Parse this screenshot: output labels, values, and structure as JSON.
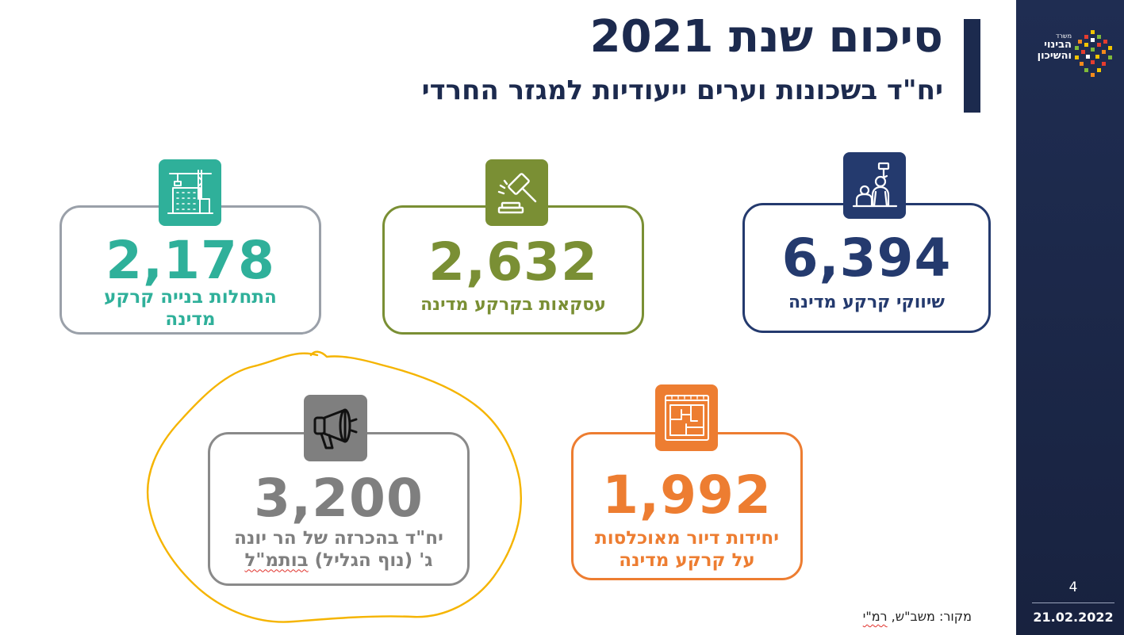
{
  "header": {
    "title": "סיכום שנת 2021",
    "subtitle": "יח\"ד בשכונות וערים ייעודיות למגזר החרדי"
  },
  "sidebar": {
    "logo_line_small": "משרד",
    "logo_line_1": "הבינוי",
    "logo_line_2": "והשיכון",
    "page_number": "4",
    "date": "21.02.2022"
  },
  "cards": {
    "marketing": {
      "value": "6,394",
      "label": "שיווקי קרקע מדינה",
      "icon": "worker-icon",
      "color": "#243a6e"
    },
    "deals": {
      "value": "2,632",
      "label": "עסקאות בקרקע מדינה",
      "icon": "gavel-icon",
      "color": "#7a8f34"
    },
    "starts": {
      "value": "2,178",
      "label": "התחלות בנייה קרקע מדינה",
      "icon": "construction-crane-icon",
      "color": "#2fb09a"
    },
    "subsidized": {
      "value": "1,992",
      "label_line_1": "יחידות דיור מאוכלסות",
      "label_line_2": "על קרקע מדינה",
      "icon": "blueprint-icon",
      "color": "#ed7d31"
    },
    "lottery": {
      "value": "3,200",
      "label_line_1": "יח\"ד בהכרזה של הר יונה",
      "label_line_2_start": "ג' (נוף הגליל) ",
      "label_line_2_underlined": "בותמ\"ל",
      "icon": "megaphone-icon",
      "color": "#7f7f7f"
    }
  },
  "source": {
    "prefix": "מקור: משב\"ש, ",
    "underlined": "רמ\"י"
  },
  "annotation": {
    "color": "#f5b400"
  }
}
